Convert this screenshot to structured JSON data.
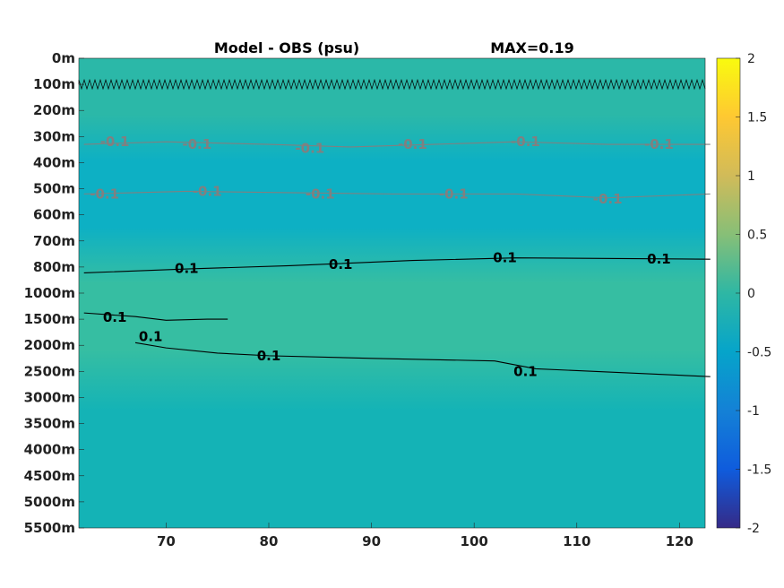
{
  "chart_data": {
    "type": "heatmap",
    "title": "Model - OBS (psu)",
    "max_label": "MAX=0.19",
    "x": {
      "ticks": [
        70,
        80,
        90,
        100,
        110,
        120
      ],
      "range": [
        61.5,
        122.5
      ]
    },
    "y": {
      "tick_labels": [
        "0m",
        "100m",
        "200m",
        "300m",
        "400m",
        "500m",
        "600m",
        "700m",
        "800m",
        "1000m",
        "1500m",
        "2000m",
        "2500m",
        "3000m",
        "3500m",
        "4000m",
        "4500m",
        "5000m",
        "5500m"
      ]
    },
    "colorbar": {
      "ticks": [
        2,
        1.5,
        1,
        0.5,
        0,
        -0.5,
        -1,
        -1.5,
        -2
      ],
      "range": [
        -2,
        2
      ],
      "colormap": "parula",
      "stops": [
        "#352a87",
        "#0f5cdd",
        "#1481d6",
        "#06a4ca",
        "#2eb7a4",
        "#87bf77",
        "#d1bb59",
        "#fec832",
        "#f9fb0e"
      ]
    },
    "field_colors": {
      "near_surface": "#2bb8a8",
      "mid": "#0db0c4",
      "deep_band": "#36bea2",
      "abyssal": "#14b3b6"
    },
    "contours": [
      {
        "level": 0.1,
        "color": "#000000",
        "kind": "surface_noise",
        "points": [
          [
            62,
            100
          ],
          [
            123,
            100
          ]
        ]
      },
      {
        "level": -0.1,
        "color": "#808080",
        "points": [
          [
            62,
            330
          ],
          [
            70,
            320
          ],
          [
            80,
            330
          ],
          [
            88,
            340
          ],
          [
            96,
            330
          ],
          [
            104,
            320
          ],
          [
            113,
            330
          ],
          [
            123,
            330
          ]
        ],
        "labels": [
          {
            "text": "-0.1",
            "x": 65,
            "y": 320
          },
          {
            "text": "-0.1",
            "x": 73,
            "y": 330
          },
          {
            "text": "-0.1",
            "x": 84,
            "y": 345
          },
          {
            "text": "-0.1",
            "x": 94,
            "y": 330
          },
          {
            "text": "-0.1",
            "x": 105,
            "y": 320
          },
          {
            "text": "-0.1",
            "x": 118,
            "y": 330
          }
        ]
      },
      {
        "level": -0.1,
        "color": "#808080",
        "points": [
          [
            62,
            520
          ],
          [
            72,
            510
          ],
          [
            82,
            515
          ],
          [
            92,
            520
          ],
          [
            104,
            520
          ],
          [
            113,
            535
          ],
          [
            123,
            520
          ]
        ],
        "labels": [
          {
            "text": "-0.1",
            "x": 64,
            "y": 520
          },
          {
            "text": "-0.1",
            "x": 74,
            "y": 510
          },
          {
            "text": "-0.1",
            "x": 85,
            "y": 520
          },
          {
            "text": "-0.1",
            "x": 98,
            "y": 520
          },
          {
            "text": "-0.1",
            "x": 113,
            "y": 540
          }
        ]
      },
      {
        "level": 0.1,
        "color": "#000000",
        "points": [
          [
            62,
            845
          ],
          [
            72,
            815
          ],
          [
            82,
            795
          ],
          [
            94,
            775
          ],
          [
            104,
            765
          ],
          [
            123,
            770
          ]
        ],
        "labels": [
          {
            "text": "0.1",
            "x": 72,
            "y": 812
          },
          {
            "text": "0.1",
            "x": 87,
            "y": 790
          },
          {
            "text": "0.1",
            "x": 103,
            "y": 765
          },
          {
            "text": "0.1",
            "x": 118,
            "y": 770
          }
        ]
      },
      {
        "level": 0.1,
        "color": "#000000",
        "points": [
          [
            62,
            1380
          ],
          [
            67,
            1450
          ],
          [
            70,
            1520
          ],
          [
            74,
            1500
          ],
          [
            76,
            1500
          ]
        ],
        "labels": [
          {
            "text": "0.1",
            "x": 65,
            "y": 1460
          },
          {
            "text": "0.1",
            "x": 68.5,
            "y": 1830
          }
        ]
      },
      {
        "level": 0.1,
        "color": "#000000",
        "points": [
          [
            67,
            1950
          ],
          [
            70,
            2050
          ],
          [
            75,
            2150
          ],
          [
            80,
            2200
          ],
          [
            90,
            2250
          ],
          [
            102,
            2300
          ],
          [
            106,
            2450
          ],
          [
            123,
            2600
          ]
        ],
        "labels": [
          {
            "text": "0.1",
            "x": 80,
            "y": 2200
          },
          {
            "text": "0.1",
            "x": 105,
            "y": 2500
          }
        ]
      }
    ]
  }
}
